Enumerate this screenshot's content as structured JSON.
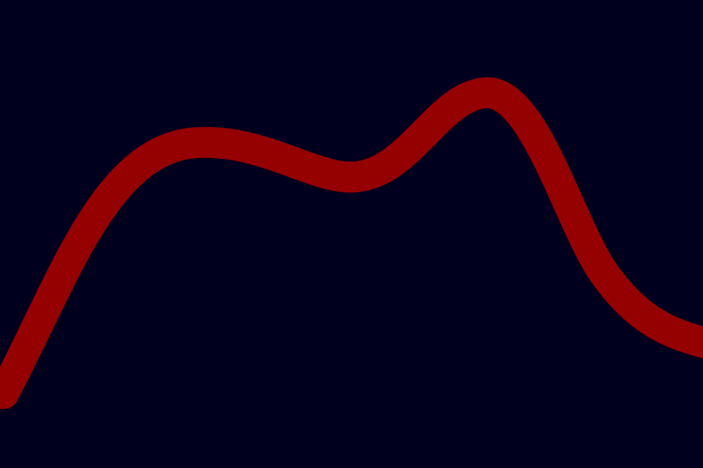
{
  "scene": {
    "background_color": "#00001e",
    "stroke_color": "#950000",
    "shape": "wavy-line"
  }
}
